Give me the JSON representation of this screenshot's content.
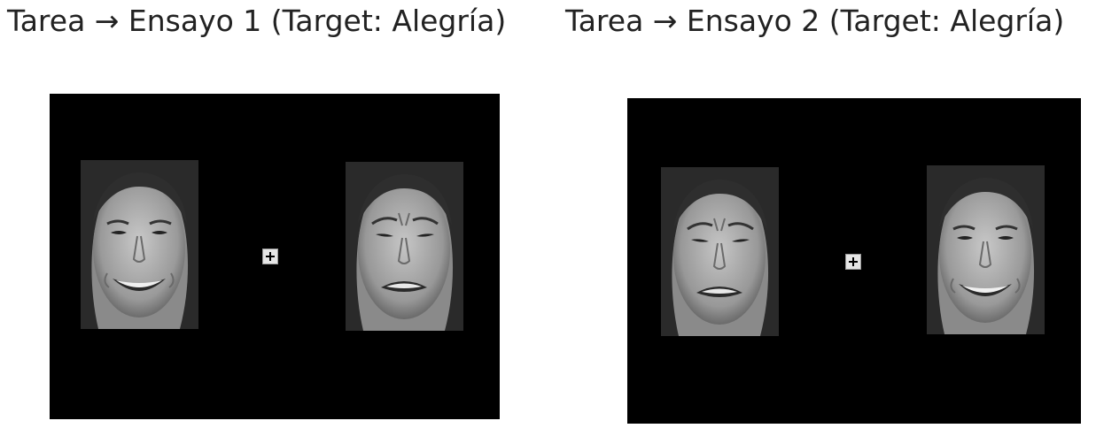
{
  "trials": [
    {
      "title": "Tarea → Ensayo 1 (Target: Alegría)",
      "left_face": "happy-face",
      "right_face": "sad-face"
    },
    {
      "title": "Tarea → Ensayo 2 (Target: Alegría)",
      "left_face": "sad-face",
      "right_face": "happy-face"
    }
  ],
  "colors": {
    "screen_background": "#000000",
    "fixation_background": "#e6e6e6"
  }
}
